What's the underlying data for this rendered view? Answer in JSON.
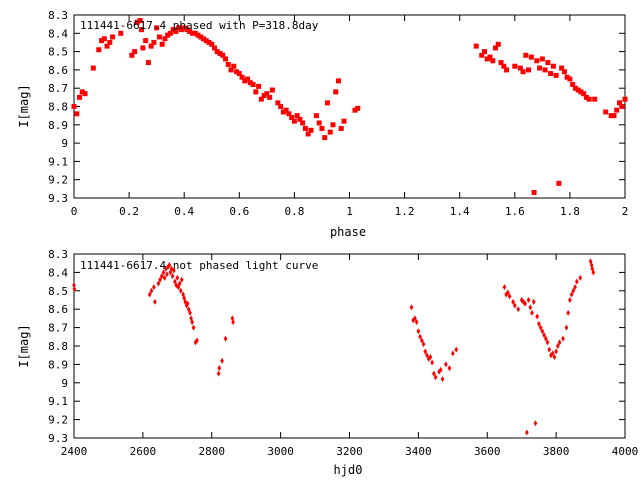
{
  "chart_data": [
    {
      "type": "scatter",
      "title": "111441-6617.4 phased with P=318.8day",
      "xlabel": "phase",
      "ylabel": "I[mag]",
      "xlim": [
        0,
        2
      ],
      "ylim": [
        9.3,
        8.3
      ],
      "y_inverted": true,
      "xticks": [
        "0",
        "0.2",
        "0.4",
        "0.6",
        "0.8",
        "1",
        "1.2",
        "1.4",
        "1.6",
        "1.8",
        "2"
      ],
      "yticks": [
        "8.3",
        "8.4",
        "8.5",
        "8.6",
        "8.7",
        "8.8",
        "8.9",
        "9",
        "9.1",
        "9.2",
        "9.3"
      ],
      "marker_color": "#ff0000",
      "points": [
        [
          0.0,
          8.8
        ],
        [
          0.01,
          8.84
        ],
        [
          0.02,
          8.75
        ],
        [
          0.03,
          8.72
        ],
        [
          0.04,
          8.73
        ],
        [
          0.07,
          8.59
        ],
        [
          0.09,
          8.49
        ],
        [
          0.1,
          8.44
        ],
        [
          0.11,
          8.43
        ],
        [
          0.12,
          8.47
        ],
        [
          0.13,
          8.45
        ],
        [
          0.14,
          8.42
        ],
        [
          0.17,
          8.4
        ],
        [
          0.21,
          8.52
        ],
        [
          0.22,
          8.5
        ],
        [
          0.23,
          8.34
        ],
        [
          0.24,
          8.33
        ],
        [
          0.245,
          8.38
        ],
        [
          0.25,
          8.48
        ],
        [
          0.26,
          8.44
        ],
        [
          0.27,
          8.56
        ],
        [
          0.28,
          8.47
        ],
        [
          0.29,
          8.45
        ],
        [
          0.3,
          8.37
        ],
        [
          0.31,
          8.42
        ],
        [
          0.32,
          8.46
        ],
        [
          0.33,
          8.43
        ],
        [
          0.34,
          8.41
        ],
        [
          0.35,
          8.4
        ],
        [
          0.36,
          8.38
        ],
        [
          0.37,
          8.39
        ],
        [
          0.38,
          8.37
        ],
        [
          0.39,
          8.38
        ],
        [
          0.4,
          8.37
        ],
        [
          0.41,
          8.38
        ],
        [
          0.42,
          8.39
        ],
        [
          0.43,
          8.4
        ],
        [
          0.44,
          8.4
        ],
        [
          0.45,
          8.41
        ],
        [
          0.46,
          8.42
        ],
        [
          0.47,
          8.43
        ],
        [
          0.48,
          8.44
        ],
        [
          0.49,
          8.45
        ],
        [
          0.5,
          8.46
        ],
        [
          0.51,
          8.48
        ],
        [
          0.52,
          8.5
        ],
        [
          0.53,
          8.51
        ],
        [
          0.54,
          8.52
        ],
        [
          0.55,
          8.54
        ],
        [
          0.56,
          8.57
        ],
        [
          0.57,
          8.6
        ],
        [
          0.58,
          8.58
        ],
        [
          0.59,
          8.61
        ],
        [
          0.6,
          8.62
        ],
        [
          0.61,
          8.64
        ],
        [
          0.62,
          8.66
        ],
        [
          0.63,
          8.65
        ],
        [
          0.64,
          8.67
        ],
        [
          0.65,
          8.68
        ],
        [
          0.66,
          8.72
        ],
        [
          0.67,
          8.69
        ],
        [
          0.68,
          8.76
        ],
        [
          0.69,
          8.74
        ],
        [
          0.7,
          8.73
        ],
        [
          0.71,
          8.75
        ],
        [
          0.72,
          8.71
        ],
        [
          0.74,
          8.78
        ],
        [
          0.75,
          8.8
        ],
        [
          0.76,
          8.83
        ],
        [
          0.77,
          8.82
        ],
        [
          0.78,
          8.84
        ],
        [
          0.79,
          8.86
        ],
        [
          0.8,
          8.88
        ],
        [
          0.81,
          8.85
        ],
        [
          0.82,
          8.87
        ],
        [
          0.83,
          8.89
        ],
        [
          0.84,
          8.92
        ],
        [
          0.85,
          8.95
        ],
        [
          0.86,
          8.93
        ],
        [
          0.88,
          8.85
        ],
        [
          0.89,
          8.89
        ],
        [
          0.9,
          8.92
        ],
        [
          0.91,
          8.97
        ],
        [
          0.92,
          8.78
        ],
        [
          0.93,
          8.94
        ],
        [
          0.94,
          8.9
        ],
        [
          0.95,
          8.72
        ],
        [
          0.96,
          8.66
        ],
        [
          0.97,
          8.92
        ],
        [
          0.98,
          8.88
        ],
        [
          1.02,
          8.82
        ],
        [
          1.03,
          8.81
        ],
        [
          1.46,
          8.47
        ],
        [
          1.48,
          8.52
        ],
        [
          1.49,
          8.5
        ],
        [
          1.5,
          8.54
        ],
        [
          1.51,
          8.53
        ],
        [
          1.52,
          8.55
        ],
        [
          1.53,
          8.48
        ],
        [
          1.54,
          8.46
        ],
        [
          1.55,
          8.56
        ],
        [
          1.56,
          8.58
        ],
        [
          1.57,
          8.6
        ],
        [
          1.6,
          8.58
        ],
        [
          1.62,
          8.59
        ],
        [
          1.63,
          8.61
        ],
        [
          1.64,
          8.52
        ],
        [
          1.65,
          8.6
        ],
        [
          1.66,
          8.53
        ],
        [
          1.67,
          9.27
        ],
        [
          1.68,
          8.55
        ],
        [
          1.69,
          8.59
        ],
        [
          1.7,
          8.54
        ],
        [
          1.71,
          8.6
        ],
        [
          1.72,
          8.56
        ],
        [
          1.73,
          8.62
        ],
        [
          1.74,
          8.58
        ],
        [
          1.75,
          8.63
        ],
        [
          1.76,
          9.22
        ],
        [
          1.77,
          8.59
        ],
        [
          1.78,
          8.61
        ],
        [
          1.79,
          8.64
        ],
        [
          1.8,
          8.65
        ],
        [
          1.81,
          8.68
        ],
        [
          1.82,
          8.7
        ],
        [
          1.83,
          8.71
        ],
        [
          1.84,
          8.72
        ],
        [
          1.85,
          8.73
        ],
        [
          1.86,
          8.75
        ],
        [
          1.87,
          8.76
        ],
        [
          1.89,
          8.76
        ],
        [
          1.93,
          8.83
        ],
        [
          1.95,
          8.85
        ],
        [
          1.96,
          8.85
        ],
        [
          1.97,
          8.82
        ],
        [
          1.98,
          8.78
        ],
        [
          1.99,
          8.8
        ],
        [
          2.0,
          8.76
        ]
      ]
    },
    {
      "type": "scatter",
      "title": "111441-6617.4 not phased light curve",
      "xlabel": "hjd0",
      "ylabel": "I[mag]",
      "xlim": [
        2400,
        4000
      ],
      "ylim": [
        9.3,
        8.3
      ],
      "y_inverted": true,
      "xticks": [
        "2400",
        "2600",
        "2800",
        "3000",
        "3200",
        "3400",
        "3600",
        "3800",
        "4000"
      ],
      "yticks": [
        "8.3",
        "8.4",
        "8.5",
        "8.6",
        "8.7",
        "8.8",
        "8.9",
        "9",
        "9.1",
        "9.2",
        "9.3"
      ],
      "marker_color": "#ff0000",
      "points": [
        [
          2400,
          8.47
        ],
        [
          2401,
          8.49
        ],
        [
          2620,
          8.52
        ],
        [
          2625,
          8.5
        ],
        [
          2632,
          8.48
        ],
        [
          2635,
          8.56
        ],
        [
          2645,
          8.46
        ],
        [
          2650,
          8.44
        ],
        [
          2655,
          8.42
        ],
        [
          2660,
          8.4
        ],
        [
          2663,
          8.43
        ],
        [
          2667,
          8.38
        ],
        [
          2670,
          8.41
        ],
        [
          2673,
          8.37
        ],
        [
          2677,
          8.36
        ],
        [
          2680,
          8.4
        ],
        [
          2683,
          8.38
        ],
        [
          2686,
          8.42
        ],
        [
          2690,
          8.39
        ],
        [
          2693,
          8.45
        ],
        [
          2697,
          8.47
        ],
        [
          2700,
          8.43
        ],
        [
          2703,
          8.48
        ],
        [
          2707,
          8.46
        ],
        [
          2710,
          8.5
        ],
        [
          2713,
          8.44
        ],
        [
          2717,
          8.52
        ],
        [
          2720,
          8.54
        ],
        [
          2723,
          8.56
        ],
        [
          2727,
          8.58
        ],
        [
          2730,
          8.57
        ],
        [
          2733,
          8.6
        ],
        [
          2737,
          8.62
        ],
        [
          2740,
          8.65
        ],
        [
          2743,
          8.67
        ],
        [
          2747,
          8.7
        ],
        [
          2753,
          8.78
        ],
        [
          2757,
          8.77
        ],
        [
          2820,
          8.95
        ],
        [
          2822,
          8.92
        ],
        [
          2830,
          8.88
        ],
        [
          2840,
          8.76
        ],
        [
          2860,
          8.65
        ],
        [
          2862,
          8.67
        ],
        [
          3380,
          8.59
        ],
        [
          3385,
          8.66
        ],
        [
          3390,
          8.65
        ],
        [
          3395,
          8.67
        ],
        [
          3400,
          8.72
        ],
        [
          3405,
          8.75
        ],
        [
          3410,
          8.77
        ],
        [
          3415,
          8.79
        ],
        [
          3420,
          8.83
        ],
        [
          3425,
          8.85
        ],
        [
          3430,
          8.87
        ],
        [
          3435,
          8.86
        ],
        [
          3440,
          8.89
        ],
        [
          3445,
          8.95
        ],
        [
          3450,
          8.97
        ],
        [
          3460,
          8.94
        ],
        [
          3465,
          8.93
        ],
        [
          3470,
          8.98
        ],
        [
          3480,
          8.9
        ],
        [
          3490,
          8.92
        ],
        [
          3500,
          8.84
        ],
        [
          3510,
          8.82
        ],
        [
          3650,
          8.48
        ],
        [
          3655,
          8.52
        ],
        [
          3660,
          8.51
        ],
        [
          3665,
          8.53
        ],
        [
          3675,
          8.56
        ],
        [
          3680,
          8.58
        ],
        [
          3690,
          8.6
        ],
        [
          3700,
          8.55
        ],
        [
          3705,
          8.56
        ],
        [
          3710,
          8.57
        ],
        [
          3715,
          9.27
        ],
        [
          3720,
          8.55
        ],
        [
          3725,
          8.59
        ],
        [
          3730,
          8.62
        ],
        [
          3735,
          8.56
        ],
        [
          3740,
          9.22
        ],
        [
          3745,
          8.64
        ],
        [
          3750,
          8.68
        ],
        [
          3755,
          8.7
        ],
        [
          3760,
          8.72
        ],
        [
          3765,
          8.74
        ],
        [
          3770,
          8.76
        ],
        [
          3775,
          8.78
        ],
        [
          3780,
          8.82
        ],
        [
          3785,
          8.85
        ],
        [
          3790,
          8.84
        ],
        [
          3795,
          8.86
        ],
        [
          3800,
          8.83
        ],
        [
          3805,
          8.8
        ],
        [
          3810,
          8.78
        ],
        [
          3820,
          8.76
        ],
        [
          3830,
          8.7
        ],
        [
          3835,
          8.62
        ],
        [
          3840,
          8.55
        ],
        [
          3845,
          8.52
        ],
        [
          3850,
          8.5
        ],
        [
          3855,
          8.48
        ],
        [
          3860,
          8.45
        ],
        [
          3870,
          8.43
        ],
        [
          3900,
          8.34
        ],
        [
          3903,
          8.36
        ],
        [
          3905,
          8.38
        ],
        [
          3908,
          8.4
        ]
      ]
    }
  ]
}
